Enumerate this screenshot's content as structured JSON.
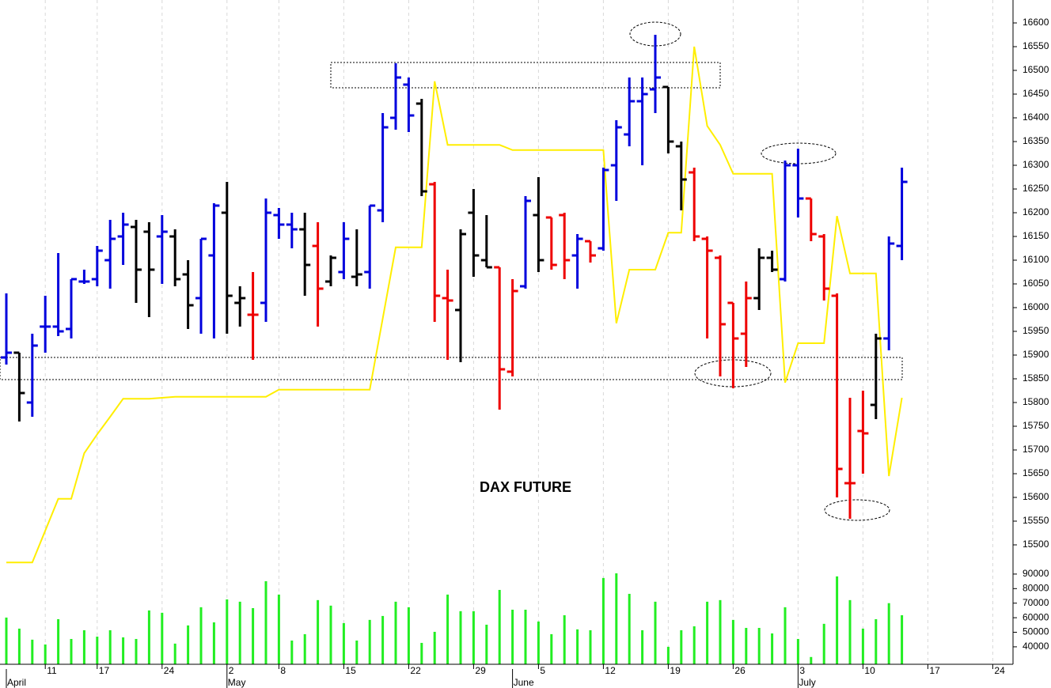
{
  "chart_data": {
    "type": "ohlc",
    "title": "DAX FUTURE",
    "categories": [
      null,
      null,
      null,
      "11",
      null,
      null,
      null,
      "17",
      null,
      null,
      null,
      null,
      "24",
      null,
      null,
      null,
      null,
      "2",
      null,
      null,
      null,
      "8",
      null,
      null,
      null,
      null,
      "15",
      null,
      null,
      null,
      null,
      "22",
      null,
      null,
      null,
      null,
      "29",
      null,
      null,
      null,
      null,
      "5",
      null,
      null,
      null,
      null,
      "12",
      null,
      null,
      null,
      null,
      "19",
      null,
      null,
      null,
      null,
      "26",
      null,
      null,
      null,
      null,
      "3",
      null,
      null,
      null,
      null,
      "10",
      null,
      null,
      null,
      null,
      "17",
      null,
      null,
      null,
      null,
      "24"
    ],
    "month_labels": [
      "April",
      null,
      null,
      null,
      null,
      null,
      null,
      null,
      null,
      null,
      null,
      null,
      null,
      null,
      null,
      null,
      null,
      "May",
      null,
      null,
      null,
      null,
      null,
      null,
      null,
      null,
      null,
      null,
      null,
      null,
      null,
      null,
      null,
      null,
      null,
      null,
      null,
      null,
      null,
      "June",
      null,
      null,
      null,
      null,
      null,
      null,
      null,
      null,
      null,
      null,
      null,
      null,
      null,
      null,
      null,
      null,
      null,
      null,
      null,
      null,
      null,
      "July",
      null,
      null,
      null,
      null,
      null,
      null,
      null,
      null,
      null,
      null,
      null,
      null,
      null,
      null,
      null
    ],
    "high": [
      16030,
      15905,
      15945,
      16025,
      16115,
      16060,
      16080,
      16130,
      16185,
      16200,
      16185,
      16180,
      16195,
      16165,
      16100,
      16145,
      16220,
      16265,
      16045,
      16075,
      16230,
      16210,
      16200,
      16200,
      16180,
      16110,
      16180,
      16165,
      16215,
      16410,
      16515,
      16485,
      16440,
      16265,
      16080,
      16165,
      16250,
      16195,
      16085,
      16060,
      16235,
      16275,
      16190,
      16200,
      16155,
      16140,
      16295,
      16395,
      16485,
      16485,
      16575,
      16465,
      16350,
      16295,
      16150,
      16110,
      16010,
      16055,
      16125,
      16120,
      16310,
      16335,
      16230,
      16155,
      16030,
      15810,
      15825,
      15945,
      16150,
      16295,
      null,
      null,
      null,
      null,
      null,
      null,
      null
    ],
    "low": [
      15880,
      15760,
      15770,
      15905,
      15940,
      15935,
      16050,
      16045,
      16040,
      16090,
      16010,
      15980,
      16050,
      16045,
      15955,
      15945,
      15935,
      15945,
      15960,
      15890,
      15970,
      16145,
      16125,
      16025,
      15960,
      16045,
      16060,
      16045,
      16040,
      16180,
      16375,
      16370,
      16235,
      15970,
      15890,
      15885,
      16065,
      16085,
      15785,
      15855,
      16040,
      16075,
      16080,
      16060,
      16040,
      16095,
      16120,
      16225,
      16340,
      16300,
      16410,
      16325,
      16205,
      16140,
      15935,
      15855,
      15830,
      15875,
      15995,
      16075,
      16055,
      16190,
      16140,
      16015,
      15600,
      15555,
      15650,
      15765,
      15910,
      16100,
      null,
      null,
      null,
      null,
      null,
      null,
      null
    ],
    "open": [
      15895,
      15905,
      15800,
      15960,
      15960,
      15955,
      16055,
      16060,
      16100,
      16150,
      16170,
      16160,
      16150,
      16150,
      16070,
      16020,
      16110,
      16200,
      16010,
      15985,
      16010,
      16195,
      16175,
      16165,
      16130,
      16055,
      16075,
      16065,
      16075,
      16205,
      16400,
      16470,
      16430,
      16260,
      16020,
      15995,
      16200,
      16100,
      16085,
      15865,
      16045,
      16195,
      16190,
      16195,
      16110,
      16140,
      16125,
      16300,
      16365,
      16435,
      16460,
      16465,
      16340,
      16285,
      16145,
      16105,
      16010,
      15945,
      16020,
      16105,
      16060,
      16300,
      16230,
      16150,
      16025,
      15630,
      15740,
      15795,
      15935,
      16130,
      null,
      null,
      null,
      null,
      null,
      null,
      null
    ],
    "close": [
      15905,
      15820,
      15920,
      15960,
      15950,
      16060,
      16055,
      16120,
      16145,
      16175,
      16080,
      16080,
      16160,
      16060,
      16005,
      16145,
      16215,
      16025,
      16020,
      15985,
      16200,
      16175,
      16165,
      16090,
      16040,
      16105,
      16145,
      16070,
      16215,
      16380,
      16485,
      16405,
      16245,
      16025,
      16015,
      16155,
      16110,
      16085,
      15870,
      16035,
      16225,
      16100,
      16090,
      16100,
      16145,
      16110,
      16290,
      16380,
      16435,
      16450,
      16485,
      16350,
      16270,
      16150,
      16120,
      15965,
      15935,
      16020,
      16105,
      16080,
      16300,
      16230,
      16155,
      16040,
      15660,
      15630,
      15735,
      15935,
      16135,
      16265,
      null,
      null,
      null,
      null,
      null,
      null,
      null
    ],
    "bar_colors": [
      "#0000dd",
      "#000000",
      "#0000dd",
      "#0000dd",
      "#0000dd",
      "#0000dd",
      "#0000dd",
      "#0000dd",
      "#0000dd",
      "#0000dd",
      "#000000",
      "#000000",
      "#0000dd",
      "#000000",
      "#000000",
      "#0000dd",
      "#0000dd",
      "#000000",
      "#000000",
      "#ee0000",
      "#0000dd",
      "#0000dd",
      "#0000dd",
      "#000000",
      "#ee0000",
      "#000000",
      "#0000dd",
      "#000000",
      "#0000dd",
      "#0000dd",
      "#0000dd",
      "#0000dd",
      "#000000",
      "#ee0000",
      "#ee0000",
      "#000000",
      "#000000",
      "#000000",
      "#ee0000",
      "#ee0000",
      "#0000dd",
      "#000000",
      "#ee0000",
      "#ee0000",
      "#0000dd",
      "#ee0000",
      "#0000dd",
      "#0000dd",
      "#0000dd",
      "#0000dd",
      "#0000dd",
      "#000000",
      "#000000",
      "#ee0000",
      "#ee0000",
      "#ee0000",
      "#ee0000",
      "#ee0000",
      "#000000",
      "#000000",
      "#0000dd",
      "#0000dd",
      "#ee0000",
      "#ee0000",
      "#ee0000",
      "#ee0000",
      "#ee0000",
      "#000000",
      "#0000dd",
      "#0000dd",
      null,
      null,
      null,
      null,
      null,
      null,
      null
    ],
    "ylim": [
      15430,
      16650
    ],
    "yticks": [
      15500,
      15550,
      15600,
      15650,
      15700,
      15750,
      15800,
      15850,
      15900,
      15950,
      16000,
      16050,
      16100,
      16150,
      16200,
      16250,
      16300,
      16350,
      16400,
      16450,
      16500,
      16550,
      16600
    ],
    "line": {
      "color": "#ffee00",
      "values": [
        15463,
        15463,
        15463,
        15530,
        15597,
        15597,
        15693,
        15733,
        15770,
        15808,
        15808,
        15808,
        15810,
        15812,
        15812,
        15812,
        15812,
        15812,
        15812,
        15812,
        15812,
        15827,
        15827,
        15827,
        15827,
        15827,
        15827,
        15827,
        15827,
        15977,
        16127,
        16127,
        16127,
        16477,
        16343,
        16343,
        16343,
        16343,
        16343,
        16332,
        16332,
        16332,
        16332,
        16332,
        16332,
        16332,
        16332,
        15967,
        16080,
        16080,
        16080,
        16158,
        16158,
        16550,
        16383,
        16343,
        16282,
        16282,
        16282,
        16282,
        15842,
        15925,
        15925,
        15925,
        16193,
        16072,
        16072,
        16072,
        15645,
        15810,
        null,
        null,
        null,
        null,
        null,
        null,
        null
      ]
    },
    "volume": {
      "color": "#22ee22",
      "values": [
        60100,
        52500,
        44900,
        41600,
        59000,
        45400,
        51400,
        47000,
        51400,
        46500,
        45400,
        65000,
        63400,
        42200,
        54700,
        67200,
        56800,
        72600,
        71000,
        66600,
        85100,
        75900,
        44300,
        48700,
        72100,
        68300,
        56300,
        44300,
        58500,
        61200,
        71000,
        67200,
        42700,
        50300,
        75900,
        64500,
        64500,
        55200,
        79100,
        65500,
        65500,
        57400,
        48700,
        61700,
        52000,
        51400,
        87300,
        90500,
        76400,
        51400,
        71000,
        40000,
        51400,
        54100,
        71000,
        72100,
        58500,
        53000,
        53000,
        49200,
        67200,
        45400,
        33000,
        55800,
        88400,
        72100,
        52500,
        59000,
        70000,
        61700,
        null,
        null,
        null,
        null,
        null,
        null,
        null
      ],
      "ylim": [
        28000,
        96000
      ],
      "yticks": [
        40000,
        50000,
        60000,
        70000,
        80000,
        90000
      ]
    }
  }
}
